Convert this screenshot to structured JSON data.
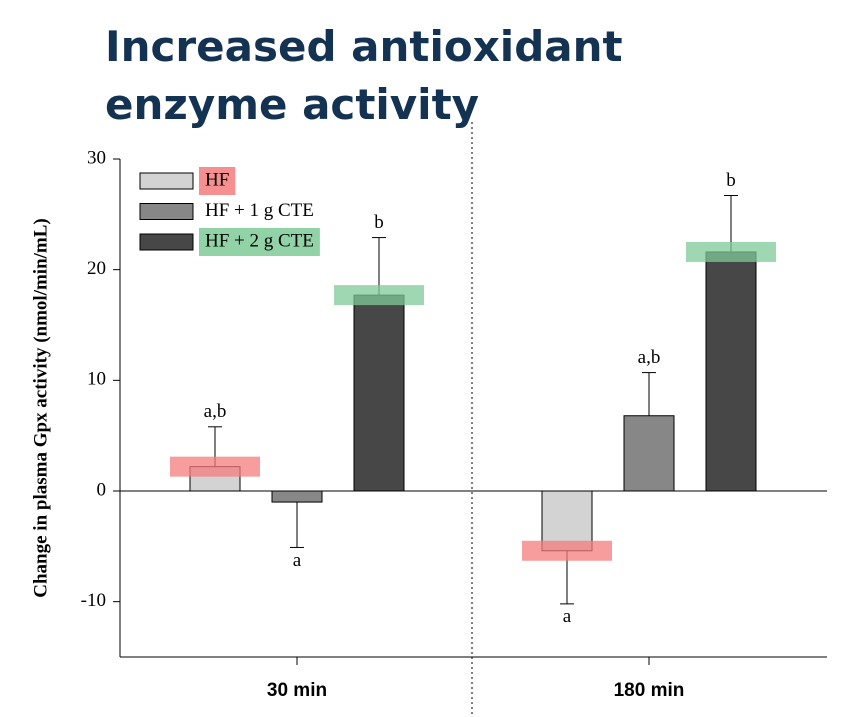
{
  "chart_data": {
    "type": "bar",
    "title": "Increased antioxidant enzyme activity",
    "ylabel": "Change in plasma Gpx activity (nmol/min/mL)",
    "categories": [
      "30 min",
      "180 min"
    ],
    "series": [
      {
        "name": "HF",
        "color": "#d3d3d3",
        "highlight": "#f47c7c",
        "values": [
          2.2,
          -5.4
        ],
        "errors": [
          3.6,
          4.8
        ],
        "significance": [
          "a,b",
          "a"
        ]
      },
      {
        "name": "HF + 1 g CTE",
        "color": "#878787",
        "values": [
          -1.0,
          6.8
        ],
        "errors": [
          4.1,
          3.9
        ],
        "significance": [
          "a",
          "a,b"
        ]
      },
      {
        "name": "HF + 2 g CTE",
        "color": "#474747",
        "highlight": "#7fca98",
        "values": [
          17.7,
          21.6
        ],
        "errors": [
          5.2,
          5.1
        ],
        "significance": [
          "b",
          "b"
        ]
      }
    ],
    "ylim": [
      -15,
      30
    ],
    "yticks": [
      -10,
      0,
      10,
      20,
      30
    ],
    "legend": "upper-left"
  }
}
